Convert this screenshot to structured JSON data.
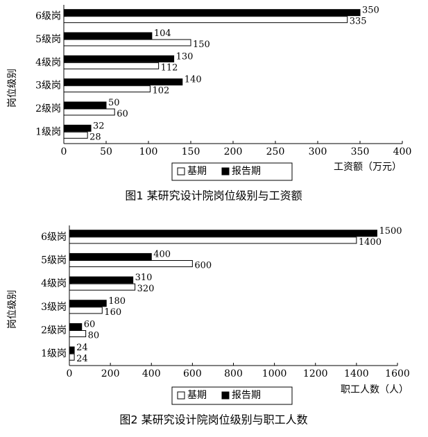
{
  "chart_data": [
    {
      "type": "bar",
      "orientation": "horizontal",
      "title": "图1 某研究设计院岗位级别与工资额",
      "xlabel": "工资额（万元）",
      "ylabel": "岗位级别",
      "categories": [
        "1级岗",
        "2级岗",
        "3级岗",
        "4级岗",
        "5级岗",
        "6级岗"
      ],
      "series": [
        {
          "name": "基期",
          "color": "#ffffff",
          "values": [
            28,
            60,
            102,
            112,
            150,
            335
          ]
        },
        {
          "name": "报告期",
          "color": "#000000",
          "values": [
            32,
            50,
            140,
            130,
            104,
            350
          ]
        }
      ],
      "xlim": [
        0,
        400
      ],
      "xticks": [
        0,
        50,
        100,
        150,
        200,
        250,
        300,
        350,
        400
      ]
    },
    {
      "type": "bar",
      "orientation": "horizontal",
      "title": "图2 某研究设计院岗位级别与职工人数",
      "xlabel": "职工人数（人）",
      "ylabel": "岗位级别",
      "categories": [
        "1级岗",
        "2级岗",
        "3级岗",
        "4级岗",
        "5级岗",
        "6级岗"
      ],
      "series": [
        {
          "name": "基期",
          "color": "#ffffff",
          "values": [
            24,
            80,
            160,
            320,
            600,
            1400
          ]
        },
        {
          "name": "报告期",
          "color": "#000000",
          "values": [
            24,
            60,
            180,
            310,
            400,
            1500
          ]
        }
      ],
      "xlim": [
        0,
        1600
      ],
      "xticks": [
        0,
        200,
        400,
        600,
        800,
        1000,
        1200,
        1400,
        1600
      ]
    }
  ]
}
